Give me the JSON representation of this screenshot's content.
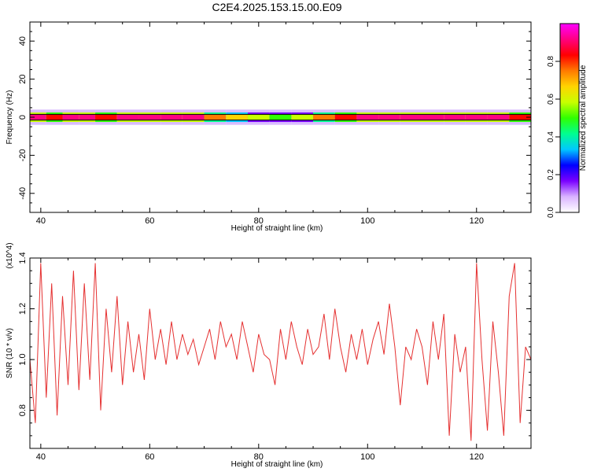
{
  "title": "C2E4.2025.153.15.00.E09",
  "colors": {
    "snr_line": "#e53030",
    "background": "#ffffff",
    "colorbar": [
      "#ffffff",
      "#d9b3ff",
      "#7a00ff",
      "#0000ff",
      "#00c8ff",
      "#00ff90",
      "#30ff00",
      "#c8ff00",
      "#ffd400",
      "#ff7a00",
      "#ff0000",
      "#ff0080",
      "#ff00ff"
    ]
  },
  "chart_data": [
    {
      "type": "heatmap",
      "title": "C2E4.2025.153.15.00.E09",
      "xlabel": "Height of straight line (km)",
      "ylabel": "Frequency (Hz)",
      "xlim": [
        38,
        130
      ],
      "ylim": [
        -50,
        50
      ],
      "xticks": [
        "40",
        "60",
        "80",
        "100",
        "120"
      ],
      "yticks": [
        "-40",
        "-20",
        "0",
        "20",
        "40"
      ],
      "colorbar": {
        "label": "Normalized spectral amplitude",
        "range": [
          0,
          1
        ],
        "ticks": [
          "0.0",
          "0.2",
          "0.4",
          "0.6",
          "0.8"
        ]
      },
      "band": {
        "center_frequency": 0,
        "half_width_core": 1.5,
        "half_width_halo": 4,
        "intensity": [
          {
            "x": 38,
            "v": 0.95
          },
          {
            "x": 41,
            "v": 0.85
          },
          {
            "x": 44,
            "v": 0.9
          },
          {
            "x": 47,
            "v": 0.9
          },
          {
            "x": 50,
            "v": 0.85
          },
          {
            "x": 54,
            "v": 0.9
          },
          {
            "x": 58,
            "v": 0.9
          },
          {
            "x": 62,
            "v": 0.95
          },
          {
            "x": 66,
            "v": 0.9
          },
          {
            "x": 70,
            "v": 0.75
          },
          {
            "x": 74,
            "v": 0.7
          },
          {
            "x": 78,
            "v": 0.55
          },
          {
            "x": 82,
            "v": 0.5
          },
          {
            "x": 86,
            "v": 0.55
          },
          {
            "x": 90,
            "v": 0.75
          },
          {
            "x": 94,
            "v": 0.85
          },
          {
            "x": 98,
            "v": 0.9
          },
          {
            "x": 102,
            "v": 0.95
          },
          {
            "x": 106,
            "v": 0.95
          },
          {
            "x": 110,
            "v": 0.95
          },
          {
            "x": 114,
            "v": 0.9
          },
          {
            "x": 118,
            "v": 0.9
          },
          {
            "x": 122,
            "v": 0.9
          },
          {
            "x": 126,
            "v": 0.85
          },
          {
            "x": 130,
            "v": 0.8
          }
        ]
      }
    },
    {
      "type": "line",
      "xlabel": "Height of straight line (km)",
      "ylabel": "SNR (10 * v/v)",
      "yscale_label": "(x10^4)",
      "xlim": [
        38,
        130
      ],
      "ylim": [
        0.65,
        1.4
      ],
      "xticks": [
        "40",
        "60",
        "80",
        "100",
        "120"
      ],
      "yticks": [
        "0.8",
        "1.0",
        "1.2",
        "1.4"
      ],
      "series": [
        {
          "color": "#e53030",
          "x": [
            38,
            39,
            40,
            41,
            42,
            43,
            44,
            45,
            46,
            47,
            48,
            49,
            50,
            51,
            52,
            53,
            54,
            55,
            56,
            57,
            58,
            59,
            60,
            61,
            62,
            63,
            64,
            65,
            66,
            67,
            68,
            69,
            70,
            71,
            72,
            73,
            74,
            75,
            76,
            77,
            78,
            79,
            80,
            81,
            82,
            83,
            84,
            85,
            86,
            87,
            88,
            89,
            90,
            91,
            92,
            93,
            94,
            95,
            96,
            97,
            98,
            99,
            100,
            101,
            102,
            103,
            104,
            105,
            106,
            107,
            108,
            109,
            110,
            111,
            112,
            113,
            114,
            115,
            116,
            117,
            118,
            119,
            120,
            121,
            122,
            123,
            124,
            125,
            126,
            127,
            128,
            129,
            130
          ],
          "values": [
            1.0,
            0.75,
            1.38,
            0.85,
            1.3,
            0.78,
            1.25,
            0.9,
            1.35,
            0.88,
            1.3,
            0.92,
            1.38,
            0.8,
            1.2,
            0.95,
            1.25,
            0.9,
            1.15,
            0.95,
            1.1,
            0.92,
            1.2,
            1.0,
            1.12,
            0.98,
            1.15,
            1.0,
            1.1,
            1.02,
            1.08,
            0.98,
            1.05,
            1.12,
            1.0,
            1.15,
            1.05,
            1.1,
            1.0,
            1.15,
            1.05,
            0.95,
            1.1,
            1.02,
            1.0,
            0.9,
            1.12,
            1.0,
            1.15,
            1.05,
            0.98,
            1.12,
            1.02,
            1.05,
            1.18,
            1.0,
            1.2,
            1.05,
            0.95,
            1.1,
            1.0,
            1.12,
            0.98,
            1.08,
            1.15,
            1.02,
            1.22,
            1.05,
            0.82,
            1.05,
            1.0,
            1.12,
            1.05,
            0.9,
            1.15,
            1.0,
            1.18,
            0.7,
            1.1,
            0.95,
            1.05,
            0.68,
            1.38,
            1.0,
            0.72,
            1.15,
            0.95,
            0.7,
            1.25,
            1.38,
            0.75,
            1.05,
            1.0
          ]
        }
      ]
    }
  ]
}
